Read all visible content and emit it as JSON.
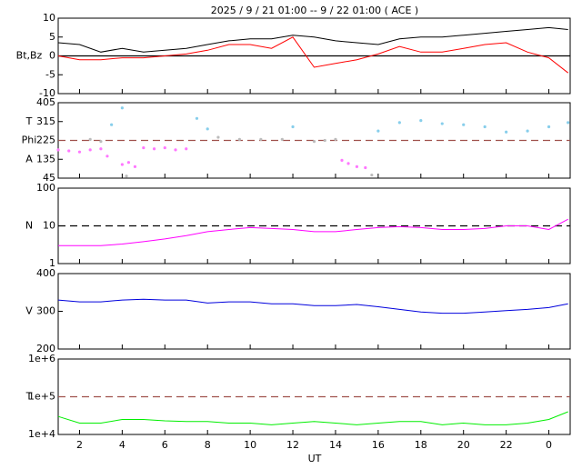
{
  "chart_data": [
    {
      "type": "line",
      "title": "2025 /  9 / 21   01:00 --  9 / 22   01:00 ( ACE )",
      "ylabel": [
        "Bt,Bz"
      ],
      "xlim": [
        1,
        25
      ],
      "ylim": [
        -10,
        10
      ],
      "yticks": [
        10,
        5,
        0,
        -5,
        -10
      ],
      "hlines": [
        {
          "value": 0,
          "color": "#000000",
          "dash": false
        }
      ],
      "x": [
        1,
        2,
        3,
        4,
        5,
        6,
        7,
        8,
        9,
        10,
        11,
        12,
        13,
        14,
        15,
        16,
        17,
        18,
        19,
        20,
        21,
        22,
        23,
        24,
        24.9
      ],
      "series": [
        {
          "color": "#000000",
          "values": [
            3.5,
            3,
            1,
            2,
            1,
            1.5,
            2,
            3,
            4,
            4.5,
            4.5,
            5.5,
            5,
            4,
            3.5,
            3,
            4.5,
            5,
            5,
            5.5,
            6,
            6.5,
            7,
            7.5,
            7
          ]
        },
        {
          "color": "#ff0000",
          "values": [
            0,
            -1,
            -1,
            -0.5,
            -0.5,
            0,
            0.5,
            1.5,
            3,
            3,
            2,
            5,
            -3,
            -2,
            -1,
            0.5,
            2.5,
            1,
            1,
            2,
            3,
            3.5,
            1,
            -0.5,
            -4.5
          ]
        }
      ]
    },
    {
      "type": "scatter",
      "ylabel": [
        "T",
        "Phi",
        "A"
      ],
      "xlim": [
        1,
        25
      ],
      "ylim": [
        45,
        405
      ],
      "yticks": [
        405,
        315,
        225,
        135,
        45
      ],
      "hlines": [
        {
          "value": 225,
          "color": "#a0524d",
          "dash": true
        }
      ],
      "series": [
        {
          "color": "#ff77ff",
          "x": [
            1,
            1.5,
            2,
            2.5,
            3,
            3.3,
            4,
            4.3,
            4.6,
            5,
            5.5,
            6,
            6.5,
            7,
            14.3,
            14.6,
            15,
            15.4
          ],
          "values": [
            180,
            175,
            170,
            180,
            185,
            150,
            110,
            120,
            100,
            190,
            185,
            190,
            180,
            185,
            130,
            115,
            100,
            95
          ]
        },
        {
          "color": "#87ceeb",
          "x": [
            3.5,
            4,
            7.5,
            8,
            12,
            16,
            17,
            18,
            19,
            20,
            21,
            22,
            23,
            24,
            24.9
          ],
          "values": [
            300,
            380,
            330,
            280,
            290,
            270,
            310,
            320,
            305,
            300,
            290,
            265,
            270,
            290,
            310
          ]
        },
        {
          "color": "#bbbbbb",
          "x": [
            2.5,
            3,
            4.2,
            8.5,
            9.5,
            10.5,
            11.5,
            13,
            13.5,
            14,
            15.7
          ],
          "values": [
            230,
            220,
            55,
            240,
            230,
            230,
            230,
            220,
            225,
            230,
            60
          ]
        }
      ]
    },
    {
      "type": "line",
      "ylabel": [
        "N"
      ],
      "log": true,
      "xlim": [
        1,
        25
      ],
      "ylim": [
        1,
        100
      ],
      "yticks": [
        100,
        10,
        1
      ],
      "hlines": [
        {
          "value": 10,
          "color": "#000000",
          "dash": true
        }
      ],
      "x": [
        1,
        2,
        3,
        4,
        5,
        6,
        7,
        8,
        9,
        10,
        11,
        12,
        13,
        14,
        15,
        16,
        17,
        18,
        19,
        20,
        21,
        22,
        23,
        24,
        24.9
      ],
      "series": [
        {
          "color": "#ff00ff",
          "values": [
            3,
            3,
            3,
            3.3,
            3.8,
            4.5,
            5.5,
            7,
            8,
            9,
            8.5,
            8,
            7,
            7,
            8,
            9,
            9.5,
            9,
            8,
            8,
            8.5,
            10,
            10,
            8,
            15
          ]
        }
      ]
    },
    {
      "type": "line",
      "ylabel": [
        "V"
      ],
      "xlim": [
        1,
        25
      ],
      "ylim": [
        200,
        400
      ],
      "yticks": [
        400,
        300,
        200
      ],
      "x": [
        1,
        2,
        3,
        4,
        5,
        6,
        7,
        8,
        9,
        10,
        11,
        12,
        13,
        14,
        15,
        16,
        17,
        18,
        19,
        20,
        21,
        22,
        23,
        24,
        24.9
      ],
      "series": [
        {
          "color": "#0000dd",
          "values": [
            330,
            325,
            325,
            330,
            332,
            330,
            330,
            322,
            325,
            325,
            320,
            320,
            315,
            315,
            318,
            312,
            305,
            298,
            295,
            295,
            298,
            302,
            305,
            310,
            320
          ]
        }
      ]
    },
    {
      "type": "line",
      "ylabel": [
        "T"
      ],
      "log": true,
      "xlabel": "UT",
      "xlim": [
        1,
        25
      ],
      "ylim": [
        10000,
        1000000
      ],
      "yticks": [
        {
          "value": 1000000,
          "label": "1e+6"
        },
        {
          "value": 100000,
          "label": "1e+5"
        },
        {
          "value": 10000,
          "label": "1e+4"
        }
      ],
      "xticks": [
        2,
        4,
        6,
        8,
        10,
        12,
        14,
        16,
        18,
        20,
        22,
        {
          "value": 24,
          "label": "0"
        }
      ],
      "hlines": [
        {
          "value": 100000,
          "color": "#a0524d",
          "dash": true
        }
      ],
      "x": [
        1,
        2,
        3,
        4,
        5,
        6,
        7,
        8,
        9,
        10,
        11,
        12,
        13,
        14,
        15,
        16,
        17,
        18,
        19,
        20,
        21,
        22,
        23,
        24,
        24.9
      ],
      "series": [
        {
          "color": "#00ee00",
          "values": [
            30000,
            20000,
            20000,
            25000,
            25000,
            23000,
            22000,
            22000,
            20000,
            20000,
            18000,
            20000,
            22000,
            20000,
            18000,
            20000,
            22000,
            22000,
            18000,
            20000,
            18000,
            18000,
            20000,
            25000,
            40000
          ]
        }
      ]
    }
  ]
}
